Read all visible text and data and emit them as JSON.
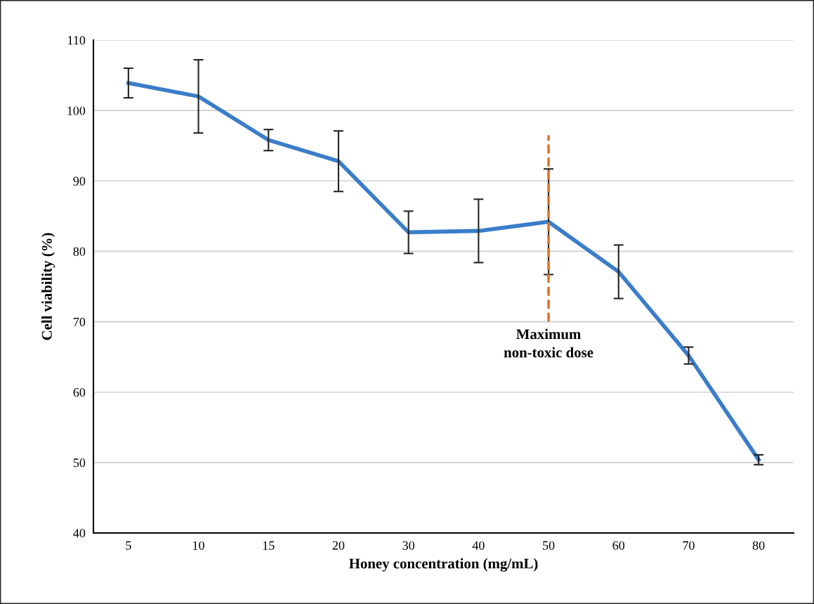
{
  "chart_data": {
    "type": "line",
    "xlabel": "Honey concentration (mg/mL)",
    "ylabel": "Cell viability (%)",
    "categories": [
      "5",
      "10",
      "15",
      "20",
      "30",
      "40",
      "50",
      "60",
      "70",
      "80"
    ],
    "series": [
      {
        "color": "#3a7dc9",
        "values": [
          103.9,
          102.0,
          95.8,
          92.8,
          82.7,
          82.9,
          84.2,
          77.1,
          65.2,
          50.4
        ],
        "errors": [
          2.1,
          5.2,
          1.5,
          4.3,
          3.0,
          4.5,
          7.5,
          3.8,
          1.2,
          0.7
        ]
      }
    ],
    "ylim": [
      40,
      110
    ],
    "yticks": [
      40,
      50,
      60,
      70,
      80,
      90,
      100,
      110
    ],
    "grid": "y",
    "marker": "none",
    "line_style": "solid",
    "ref_lines": [
      {
        "axis": "x",
        "value": "50",
        "label": "Maximum\nnon-toxic dose",
        "color": "#e07020",
        "line_style": "dashed"
      }
    ]
  }
}
